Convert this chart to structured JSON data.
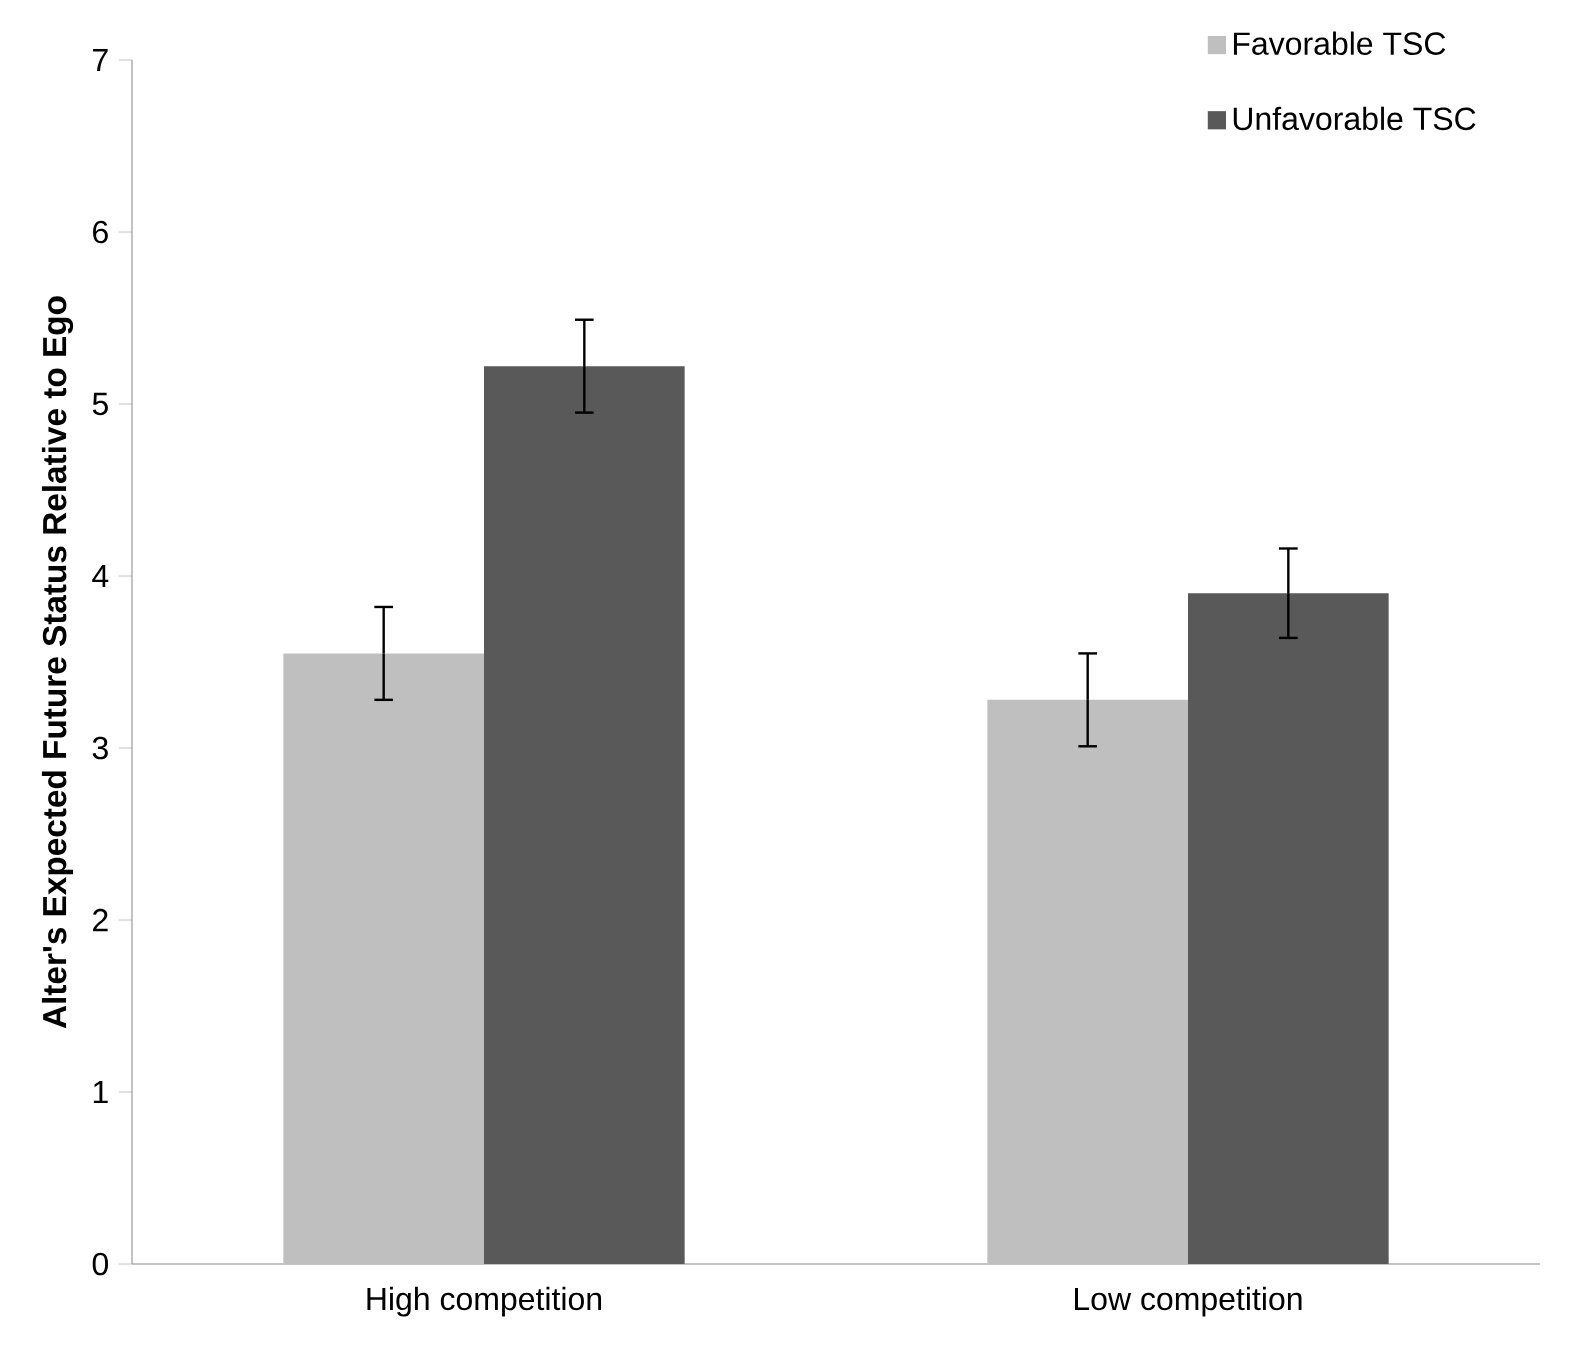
{
  "chart_data": {
    "type": "bar",
    "ylabel": "Alter's Expected Future Status Relative to Ego",
    "categories": [
      "High competition",
      "Low competition"
    ],
    "series": [
      {
        "name": "Favorable TSC",
        "color": "#bfbfbf",
        "values": [
          3.55,
          3.28
        ],
        "errors": [
          0.27,
          0.27
        ]
      },
      {
        "name": "Unfavorable TSC",
        "color": "#595959",
        "values": [
          5.22,
          3.9
        ],
        "errors": [
          0.27,
          0.26
        ]
      }
    ],
    "ylim": [
      0,
      7
    ],
    "yticks": [
      0,
      1,
      2,
      3,
      4,
      5,
      6,
      7
    ],
    "grid": false,
    "legend": "top right"
  }
}
